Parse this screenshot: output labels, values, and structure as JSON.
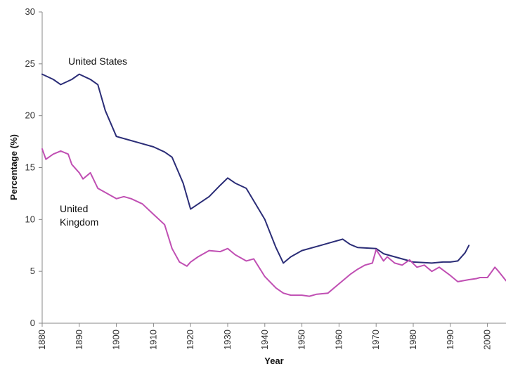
{
  "chart_data": {
    "type": "line",
    "title": "",
    "xlabel": "Year",
    "ylabel": "Percentage (%)",
    "xlim": [
      1880,
      2005
    ],
    "ylim": [
      0,
      30
    ],
    "x_ticks": [
      1880,
      1890,
      1900,
      1910,
      1920,
      1930,
      1940,
      1950,
      1960,
      1970,
      1980,
      1990,
      2000
    ],
    "y_ticks": [
      0,
      5,
      10,
      15,
      20,
      25,
      30
    ],
    "grid": false,
    "legend": "none",
    "series": [
      {
        "name": "United States",
        "label_lines": [
          "United States"
        ],
        "color": "#2b2d77",
        "x": [
          1880,
          1883,
          1885,
          1888,
          1890,
          1893,
          1895,
          1897,
          1900,
          1903,
          1906,
          1910,
          1913,
          1915,
          1918,
          1920,
          1925,
          1928,
          1930,
          1932,
          1935,
          1937,
          1940,
          1943,
          1945,
          1947,
          1950,
          1955,
          1958,
          1961,
          1963,
          1965,
          1970,
          1972,
          1975,
          1978,
          1980,
          1985,
          1988,
          1990,
          1992,
          1994,
          1995
        ],
        "y": [
          24,
          23.5,
          23,
          23.5,
          24,
          23.5,
          23,
          20.5,
          18,
          17.7,
          17.4,
          17,
          16.5,
          16,
          13.5,
          11,
          12.2,
          13.3,
          14,
          13.5,
          13,
          11.8,
          10,
          7.3,
          5.8,
          6.4,
          7.0,
          7.5,
          7.8,
          8.1,
          7.6,
          7.3,
          7.2,
          6.7,
          6.4,
          6.1,
          5.9,
          5.8,
          5.9,
          5.9,
          6.0,
          6.8,
          7.5
        ]
      },
      {
        "name": "United Kingdom",
        "label_lines": [
          "United",
          "Kingdom"
        ],
        "color": "#c04fb3",
        "x": [
          1880,
          1881,
          1883,
          1885,
          1887,
          1888,
          1890,
          1891,
          1893,
          1895,
          1897,
          1900,
          1902,
          1904,
          1907,
          1910,
          1913,
          1915,
          1917,
          1919,
          1920,
          1922,
          1925,
          1928,
          1930,
          1932,
          1935,
          1937,
          1940,
          1943,
          1945,
          1947,
          1950,
          1952,
          1954,
          1957,
          1960,
          1963,
          1965,
          1967,
          1969,
          1970,
          1972,
          1973,
          1975,
          1977,
          1979,
          1981,
          1983,
          1985,
          1987,
          1990,
          1992,
          1995,
          1997,
          1998,
          2000,
          2002,
          2003,
          2005
        ],
        "y": [
          16.8,
          15.8,
          16.3,
          16.6,
          16.3,
          15.3,
          14.5,
          13.9,
          14.5,
          13.0,
          12.6,
          12.0,
          12.2,
          12.0,
          11.5,
          10.5,
          9.5,
          7.2,
          5.9,
          5.5,
          5.9,
          6.4,
          7.0,
          6.9,
          7.2,
          6.6,
          6.0,
          6.2,
          4.5,
          3.4,
          2.9,
          2.7,
          2.7,
          2.6,
          2.8,
          2.9,
          3.8,
          4.7,
          5.2,
          5.6,
          5.8,
          7.1,
          6.0,
          6.4,
          5.8,
          5.6,
          6.1,
          5.4,
          5.6,
          5.0,
          5.4,
          4.6,
          4.0,
          4.2,
          4.3,
          4.4,
          4.4,
          5.4,
          5.0,
          4.1
        ]
      }
    ]
  }
}
